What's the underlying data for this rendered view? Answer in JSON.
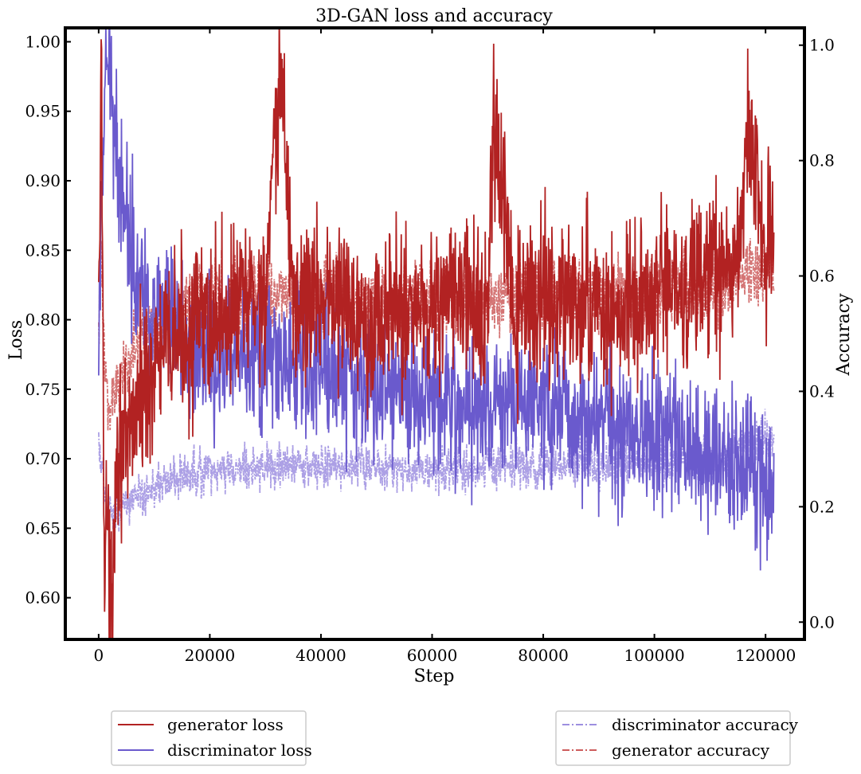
{
  "chart_data": {
    "type": "line",
    "title": "3D-GAN loss and accuracy",
    "xlabel": "Step",
    "ylabel": "Loss",
    "y2label": "Accuracy",
    "xlim": [
      -6000,
      127000
    ],
    "ylim": [
      0.57,
      1.01
    ],
    "y2lim": [
      -0.03,
      1.03
    ],
    "x_ticks": [
      0,
      20000,
      40000,
      60000,
      80000,
      100000,
      120000
    ],
    "y_ticks": [
      0.6,
      0.65,
      0.7,
      0.75,
      0.8,
      0.85,
      0.9,
      0.95,
      1.0
    ],
    "y_tick_labels": [
      "0.60",
      "0.65",
      "0.70",
      "0.75",
      "0.80",
      "0.85",
      "0.90",
      "0.95",
      "1.00"
    ],
    "y2_ticks": [
      0.0,
      0.2,
      0.4,
      0.6,
      0.8,
      1.0
    ],
    "y2_tick_labels": [
      "0.0",
      "0.2",
      "0.4",
      "0.6",
      "0.8",
      "1.0"
    ],
    "grid": false,
    "legend_left_position": "below-left",
    "legend_right_position": "below-right",
    "colors": {
      "generator": "#b22222",
      "discriminator": "#6a5acd",
      "discriminator_accuracy": "#9d8fe0",
      "generator_accuracy": "#cd5c5c"
    },
    "series": [
      {
        "name": "generator loss",
        "axis": "left",
        "style": "solid",
        "x": [
          0,
          500,
          1000,
          1500,
          2000,
          2500,
          3000,
          4000,
          5000,
          6000,
          8000,
          10000,
          15000,
          20000,
          25000,
          30000,
          33000,
          35000,
          40000,
          45000,
          50000,
          55000,
          60000,
          65000,
          70000,
          71000,
          75000,
          80000,
          85000,
          90000,
          95000,
          100000,
          105000,
          110000,
          115000,
          117000,
          120000,
          121500
        ],
        "y": [
          0.79,
          0.99,
          0.64,
          0.67,
          0.59,
          0.61,
          0.7,
          0.72,
          0.69,
          0.73,
          0.75,
          0.77,
          0.79,
          0.8,
          0.81,
          0.82,
          0.98,
          0.81,
          0.82,
          0.81,
          0.8,
          0.81,
          0.81,
          0.82,
          0.8,
          0.94,
          0.8,
          0.82,
          0.81,
          0.81,
          0.8,
          0.82,
          0.82,
          0.83,
          0.84,
          0.94,
          0.85,
          0.86
        ],
        "noise": 0.045
      },
      {
        "name": "discriminator loss",
        "axis": "left",
        "style": "solid",
        "x": [
          0,
          500,
          1000,
          2000,
          2500,
          3000,
          4000,
          5000,
          6000,
          8000,
          10000,
          15000,
          20000,
          25000,
          30000,
          35000,
          40000,
          45000,
          50000,
          55000,
          60000,
          65000,
          70000,
          75000,
          80000,
          85000,
          90000,
          95000,
          100000,
          105000,
          110000,
          115000,
          120000,
          121500
        ],
        "y": [
          0.75,
          0.9,
          0.94,
          0.99,
          0.97,
          0.92,
          0.9,
          0.88,
          0.85,
          0.83,
          0.8,
          0.79,
          0.77,
          0.77,
          0.77,
          0.77,
          0.77,
          0.76,
          0.75,
          0.75,
          0.75,
          0.74,
          0.74,
          0.74,
          0.74,
          0.73,
          0.73,
          0.72,
          0.72,
          0.71,
          0.7,
          0.7,
          0.69,
          0.68
        ],
        "noise": 0.04
      },
      {
        "name": "discriminator accuracy",
        "axis": "right",
        "style": "dashdot",
        "x": [
          0,
          1000,
          2000,
          3000,
          5000,
          8000,
          10000,
          20000,
          30000,
          40000,
          50000,
          60000,
          70000,
          80000,
          90000,
          100000,
          110000,
          115000,
          120000,
          121500
        ],
        "y": [
          0.3,
          0.23,
          0.19,
          0.2,
          0.21,
          0.22,
          0.24,
          0.26,
          0.27,
          0.27,
          0.27,
          0.26,
          0.27,
          0.27,
          0.27,
          0.28,
          0.28,
          0.3,
          0.32,
          0.33
        ],
        "noise": 0.03
      },
      {
        "name": "generator accuracy",
        "axis": "right",
        "style": "dashdot",
        "x": [
          0,
          500,
          1000,
          2000,
          3000,
          5000,
          8000,
          10000,
          15000,
          20000,
          30000,
          40000,
          50000,
          60000,
          70000,
          80000,
          90000,
          100000,
          110000,
          115000,
          120000,
          121500
        ],
        "y": [
          0.5,
          0.65,
          0.44,
          0.38,
          0.4,
          0.45,
          0.5,
          0.52,
          0.55,
          0.57,
          0.57,
          0.56,
          0.55,
          0.56,
          0.56,
          0.56,
          0.57,
          0.57,
          0.58,
          0.6,
          0.62,
          0.62
        ],
        "noise": 0.05
      }
    ]
  }
}
